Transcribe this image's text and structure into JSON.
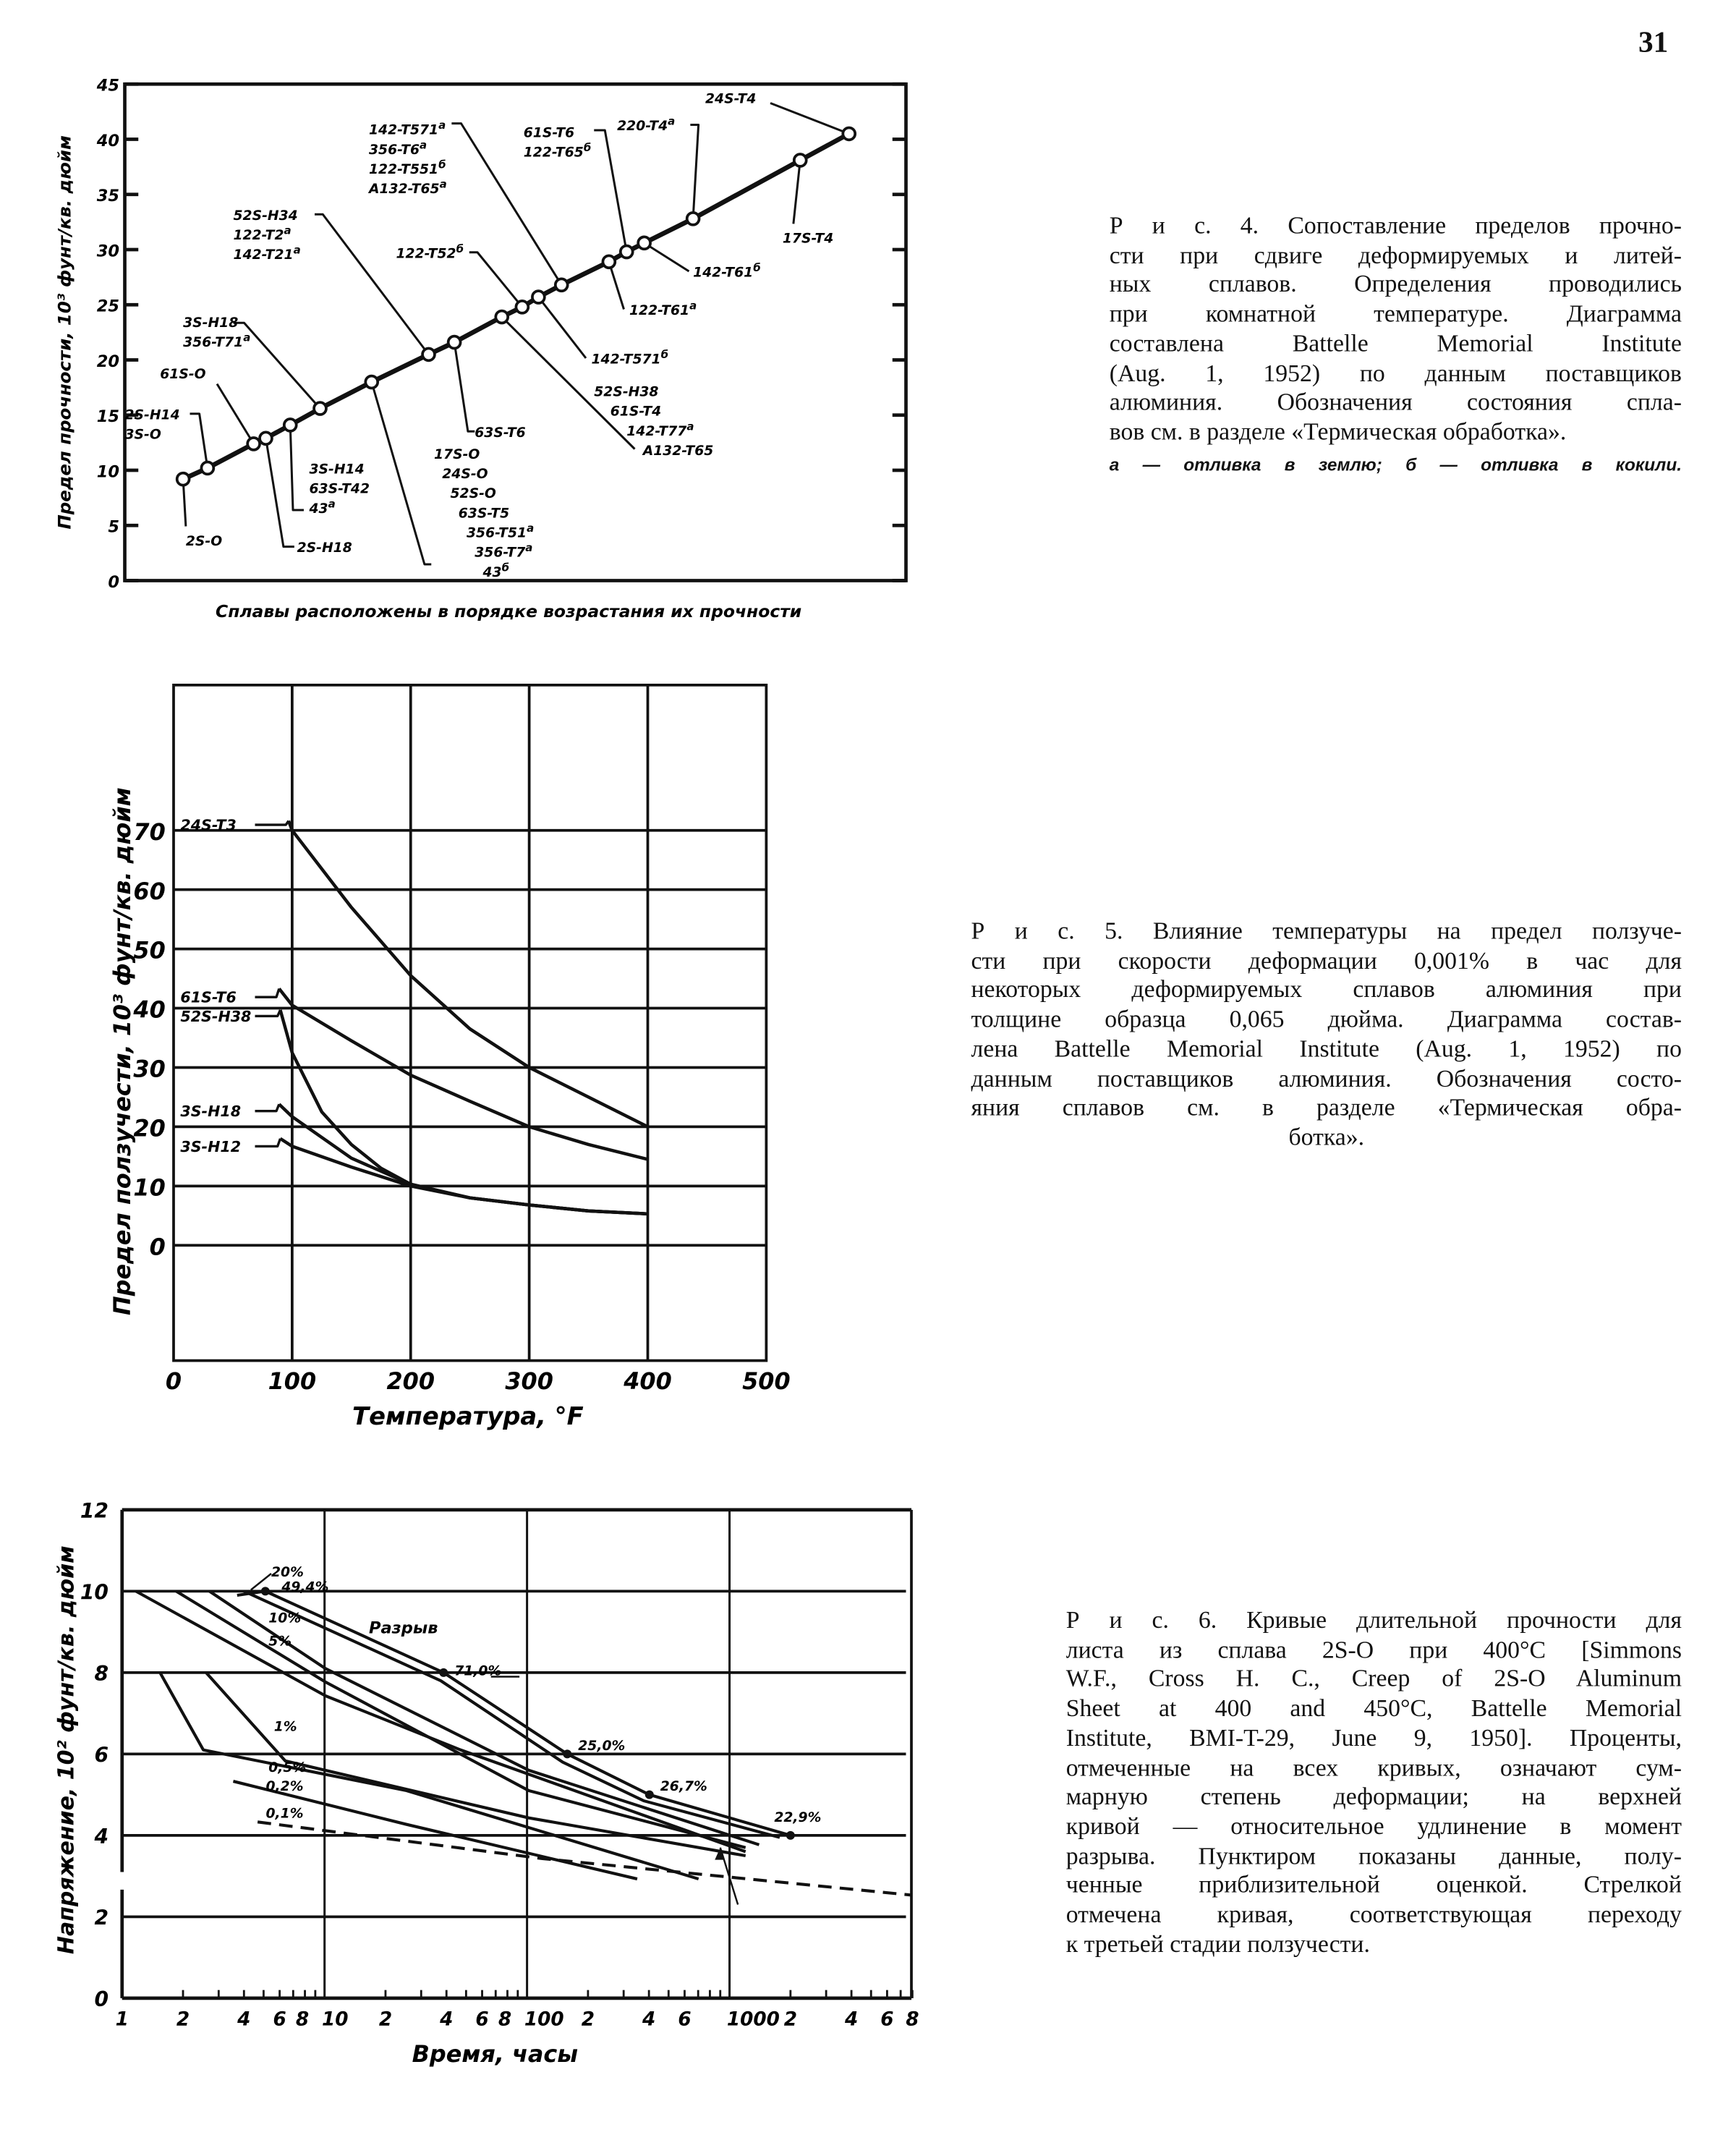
{
  "page_number": "31",
  "captions": {
    "fig4": [
      "Р и с. 4. Сопоставление пределов прочно-",
      "сти при сдвиге деформируемых и литей-",
      "ных сплавов. Определения проводились",
      "при комнатной температуре. Диаграмма",
      "составлена Battelle Memorial Institute",
      "(Aug. 1, 1952) по данным поставщиков",
      "алюминия. Обозначения состояния спла-",
      "вов см. в разделе «Термическая обработка».",
      "а — отливка в землю; б — отливка в кокили."
    ],
    "fig5": [
      "Р и с. 5. Влияние температуры на предел ползуче-",
      "сти при скорости деформации 0,001% в час для",
      "некоторых деформируемых сплавов алюминия при",
      "толщине образца 0,065 дюйма. Диаграмма состав-",
      "лена Battelle Memorial Institute (Aug. 1, 1952) по",
      "данным поставщиков алюминия. Обозначения состо-",
      "яния сплавов см. в разделе «Термическая обра-",
      "ботка»."
    ],
    "fig6": [
      "Р и с. 6. Кривые длительной прочности для",
      "листа из сплава 2S-O при 400°C [Simmons",
      "W.F., Cross H. C., Creep of 2S-O Aluminum",
      "Sheet at 400 and 450°C, Battelle Memorial",
      "Institute, BMI-T-29, June 9, 1950]. Проценты,",
      "отмеченные на всех кривых, означают сум-",
      "марную степень деформации; на верхней",
      "кривой — относительное удлинение в момент",
      "разрыва. Пунктиром показаны данные, полу-",
      "ченные приблизительной оценкой. Стрелкой",
      "отмечена кривая, соответствующая переходу",
      "к третьей стадии ползучести."
    ]
  },
  "chart_data": [
    {
      "id": "fig4",
      "type": "line",
      "xlabel": "Сплавы расположены в порядке возрастания их прочности",
      "ylabel": "Предел прочности, 10³ фунт/кв. дюйм",
      "ylim": [
        0,
        45
      ],
      "yticks": [
        0,
        5,
        10,
        15,
        20,
        25,
        30,
        35,
        40,
        45
      ],
      "grid": false,
      "points": [
        {
          "value": 9.2,
          "alloys": [
            {
              "t": "2S-O"
            }
          ]
        },
        {
          "value": 10.2,
          "alloys": [
            {
              "t": "2S-H14"
            },
            {
              "t": "3S-O"
            }
          ]
        },
        {
          "value": 12.4,
          "alloys": [
            {
              "t": "61S-O"
            }
          ]
        },
        {
          "value": 12.9,
          "alloys": [
            {
              "t": "2S-H18"
            }
          ]
        },
        {
          "value": 14.1,
          "alloys": [
            {
              "t": "3S-H14"
            },
            {
              "t": "63S-T42"
            },
            {
              "t": "43",
              "sup": "а"
            }
          ]
        },
        {
          "value": 15.6,
          "alloys": [
            {
              "t": "3S-H18"
            },
            {
              "t": "356-T71",
              "sup": "а"
            }
          ]
        },
        {
          "value": 18.0,
          "alloys": [
            {
              "t": "17S-O"
            },
            {
              "t": "24S-O"
            },
            {
              "t": "52S-O"
            },
            {
              "t": "63S-T5"
            },
            {
              "t": "356-T51",
              "sup": "а"
            },
            {
              "t": "356-T7",
              "sup": "а"
            },
            {
              "t": "43",
              "sup": "б"
            }
          ]
        },
        {
          "value": 20.5,
          "alloys": [
            {
              "t": "52S-H34"
            },
            {
              "t": "122-T2",
              "sup": "а"
            },
            {
              "t": "142-T21",
              "sup": "а"
            }
          ]
        },
        {
          "value": 21.6,
          "alloys": [
            {
              "t": "63S-T6"
            }
          ]
        },
        {
          "value": 23.9,
          "alloys": [
            {
              "t": "52S-H38"
            },
            {
              "t": "61S-T4"
            },
            {
              "t": "142-T77",
              "sup": "а"
            },
            {
              "t": "A132-T65"
            }
          ]
        },
        {
          "value": 24.8,
          "alloys": [
            {
              "t": "122-T52",
              "sup": "б"
            }
          ]
        },
        {
          "value": 25.7,
          "alloys": [
            {
              "t": "142-T571",
              "sup": "б"
            }
          ]
        },
        {
          "value": 26.8,
          "alloys": [
            {
              "t": "142-T571",
              "sup": "а"
            },
            {
              "t": "356-T6",
              "sup": "а"
            },
            {
              "t": "122-T551",
              "sup": "б"
            },
            {
              "t": "A132-T65",
              "sup": "а"
            }
          ]
        },
        {
          "value": 28.9,
          "alloys": [
            {
              "t": "122-T61",
              "sup": "а"
            }
          ]
        },
        {
          "value": 29.8,
          "alloys": [
            {
              "t": "61S-T6"
            },
            {
              "t": "122-T65",
              "sup": "б"
            }
          ]
        },
        {
          "value": 30.6,
          "alloys": [
            {
              "t": "142-T61",
              "sup": "б"
            }
          ]
        },
        {
          "value": 32.8,
          "alloys": [
            {
              "t": "220-T4",
              "sup": "а"
            }
          ]
        },
        {
          "value": 38.1,
          "alloys": [
            {
              "t": "17S-T4"
            }
          ]
        },
        {
          "value": 40.5,
          "alloys": [
            {
              "t": "24S-T4"
            }
          ]
        }
      ]
    },
    {
      "id": "fig5",
      "type": "line",
      "xlabel": "Температура, °F",
      "ylabel": "Предел ползучести, 10³ фунт/кв. дюйм",
      "xlim": [
        0,
        500
      ],
      "xticks": [
        0,
        100,
        200,
        300,
        400,
        500
      ],
      "yticks": [
        0,
        10,
        20,
        30,
        40,
        50,
        60,
        70
      ],
      "grid": true,
      "series": [
        {
          "name": "24S-T3",
          "points": [
            [
              97,
              71.6
            ],
            [
              100,
              70
            ],
            [
              150,
              57
            ],
            [
              200,
              45.5
            ],
            [
              250,
              36.5
            ],
            [
              300,
              30
            ],
            [
              350,
              25
            ],
            [
              400,
              20
            ]
          ]
        },
        {
          "name": "61S-T6",
          "points": [
            [
              89,
              43.3
            ],
            [
              100,
              40.5
            ],
            [
              150,
              34.5
            ],
            [
              200,
              28.7
            ],
            [
              250,
              24.3
            ],
            [
              300,
              20
            ],
            [
              350,
              17
            ],
            [
              400,
              14.5
            ]
          ]
        },
        {
          "name": "52S-H38",
          "points": [
            [
              90,
              39.7
            ],
            [
              100,
              32.5
            ],
            [
              110,
              28.5
            ],
            [
              125,
              22.5
            ],
            [
              150,
              17
            ],
            [
              175,
              13
            ],
            [
              200,
              10.3
            ],
            [
              250,
              8
            ],
            [
              300,
              6.8
            ],
            [
              350,
              5.8
            ],
            [
              400,
              5.3
            ]
          ]
        },
        {
          "name": "3S-H18",
          "points": [
            [
              89,
              23.8
            ],
            [
              100,
              21.7
            ],
            [
              150,
              14.7
            ],
            [
              200,
              10.3
            ],
            [
              250,
              8
            ],
            [
              300,
              6.8
            ],
            [
              350,
              5.8
            ],
            [
              400,
              5.3
            ]
          ]
        },
        {
          "name": "3S-H12",
          "points": [
            [
              90,
              18
            ],
            [
              100,
              16.7
            ],
            [
              150,
              13.2
            ],
            [
              200,
              10
            ],
            [
              250,
              8
            ],
            [
              300,
              6.8
            ],
            [
              350,
              5.8
            ],
            [
              400,
              5.3
            ]
          ]
        }
      ]
    },
    {
      "id": "fig6",
      "type": "line",
      "xlabel": "Время, часы",
      "ylabel": "Напряжение, 10² фунт/кв. дюйм",
      "xscale": "log",
      "xlim": [
        1,
        8000
      ],
      "ylim": [
        0,
        12
      ],
      "yticks": [
        0,
        2,
        4,
        6,
        8,
        10,
        12
      ],
      "xticks": [
        {
          "v": 1,
          "l": "1"
        },
        {
          "v": 2,
          "l": "2"
        },
        {
          "v": 4,
          "l": "4"
        },
        {
          "v": 6,
          "l": "6"
        },
        {
          "v": 8,
          "l": "8"
        },
        {
          "v": 10,
          "l": "10"
        },
        {
          "v": 20,
          "l": "2"
        },
        {
          "v": 40,
          "l": "4"
        },
        {
          "v": 60,
          "l": "6"
        },
        {
          "v": 80,
          "l": "8"
        },
        {
          "v": 100,
          "l": "100"
        },
        {
          "v": 200,
          "l": "2"
        },
        {
          "v": 400,
          "l": "4"
        },
        {
          "v": 600,
          "l": "6"
        },
        {
          "v": 1000,
          "l": "1000"
        },
        {
          "v": 2000,
          "l": "2"
        },
        {
          "v": 4000,
          "l": "4"
        },
        {
          "v": 6000,
          "l": "6"
        },
        {
          "v": 8000,
          "l": "8"
        }
      ],
      "grid": true,
      "rupture_label": "Разрыв",
      "series": [
        {
          "name": "Разрыв",
          "points": [
            [
              3.7,
              9.9
            ],
            [
              5.1,
              10
            ],
            [
              38.7,
              8
            ],
            [
              158,
              6
            ],
            [
              402,
              5
            ],
            [
              2000,
              4
            ]
          ],
          "markers": [
            {
              "x": 5.1,
              "y": 10,
              "label": "49,4%"
            },
            {
              "x": 38.7,
              "y": 8,
              "label": "71,0%"
            },
            {
              "x": 158,
              "y": 6,
              "label": "25,0%"
            },
            {
              "x": 402,
              "y": 5,
              "label": "26,7%"
            },
            {
              "x": 2000,
              "y": 4,
              "label": "22,9%"
            }
          ]
        },
        {
          "name": "20%",
          "points": [
            [
              4,
              10
            ],
            [
              37.5,
              7.8
            ],
            [
              150,
              5.8
            ],
            [
              377,
              4.85
            ],
            [
              1770,
              3.95
            ]
          ]
        },
        {
          "name": "10%",
          "points": [
            [
              2.7,
              10
            ],
            [
              10.1,
              8.1
            ],
            [
              102,
              5.6
            ],
            [
              1400,
              3.77
            ]
          ]
        },
        {
          "name": "5%",
          "points": [
            [
              1.85,
              10
            ],
            [
              10.1,
              7.77
            ],
            [
              102,
              5.1
            ],
            [
              1200,
              3.7
            ]
          ]
        },
        {
          "points": [
            [
              1.17,
              10
            ],
            [
              10.1,
              7.43
            ],
            [
              47,
              6.1
            ],
            [
              1200,
              3.6
            ]
          ]
        },
        {
          "name": "1%",
          "points": [
            [
              2.6,
              8
            ],
            [
              6.4,
              5.83
            ],
            [
              102,
              4.43
            ],
            [
              1200,
              3.5
            ]
          ]
        },
        {
          "name": "0,5%",
          "points": [
            [
              1.54,
              8
            ],
            [
              2.52,
              6.1
            ],
            [
              25.4,
              5.1
            ],
            [
              703,
              2.93
            ]
          ]
        },
        {
          "name": "0,2%",
          "points": [
            [
              3.54,
              5.33
            ],
            [
              25.4,
              4.27
            ],
            [
              350,
              2.93
            ]
          ]
        },
        {
          "name": "0,1%",
          "dashed": true,
          "points": [
            [
              4.67,
              4.33
            ],
            [
              119,
              3.43
            ],
            [
              8000,
              2.53
            ]
          ]
        }
      ],
      "arrow": {
        "from": [
          1100,
          2.3
        ],
        "to": [
          900,
          3.7
        ]
      }
    }
  ]
}
